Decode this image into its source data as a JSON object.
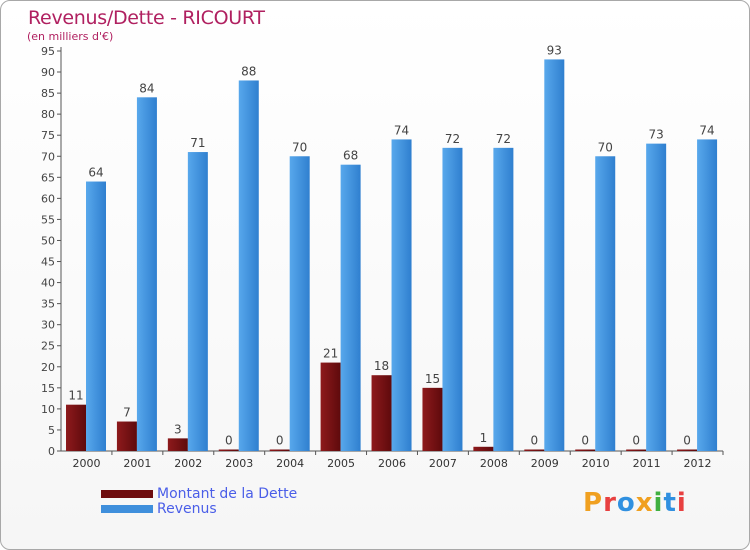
{
  "title": "Revenus/Dette - RICOURT",
  "subtitle": "(en milliers d'€)",
  "logo": {
    "text": "Proxiti",
    "letters": [
      "P",
      "r",
      "o",
      "x",
      "i",
      "t",
      "i"
    ],
    "colors": [
      "#f0a020",
      "#e84040",
      "#3090e0",
      "#f0a020",
      "#40b040",
      "#3090e0",
      "#e84040"
    ]
  },
  "chart_data": {
    "type": "bar",
    "title": "Revenus/Dette - RICOURT",
    "ylabel": "(en milliers d'€)",
    "xlabel": "",
    "categories": [
      "2000",
      "2001",
      "2002",
      "2003",
      "2004",
      "2005",
      "2006",
      "2007",
      "2008",
      "2009",
      "2010",
      "2011",
      "2012"
    ],
    "series": [
      {
        "name": "Montant de la Dette",
        "color": "#7a0f12",
        "values": [
          11,
          7,
          3,
          0,
          0,
          21,
          18,
          15,
          1,
          0,
          0,
          0,
          0
        ]
      },
      {
        "name": "Revenus",
        "color": "#3f8fdc",
        "values": [
          64,
          84,
          71,
          88,
          70,
          68,
          74,
          72,
          72,
          93,
          70,
          73,
          74
        ]
      }
    ],
    "ylim": [
      0,
      95
    ],
    "yticks": [
      0,
      5,
      10,
      15,
      20,
      25,
      30,
      35,
      40,
      45,
      50,
      55,
      60,
      65,
      70,
      75,
      80,
      85,
      90,
      95
    ],
    "grid": false,
    "legend_position": "bottom-left"
  }
}
